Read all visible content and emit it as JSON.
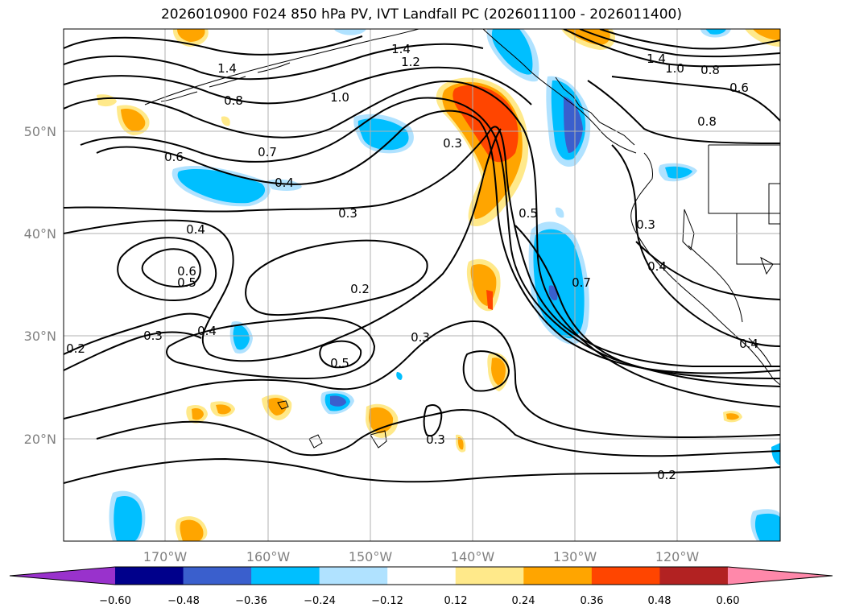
{
  "title": "2026010900 F024 850 hPa PV, IVT Landfall PC (2026011100 - 2026011400)",
  "lat_labels": [
    "50°N",
    "40°N",
    "30°N",
    "20°N"
  ],
  "lon_labels": [
    "170°W",
    "160°W",
    "150°W",
    "140°W",
    "130°W",
    "120°W"
  ],
  "contour_labels": [
    "1.4",
    "1.4",
    "1.2",
    "1.0",
    "0.8",
    "1.4",
    "1.0",
    "0.8",
    "0.6",
    "0.8",
    "0.7",
    "0.6",
    "0.3",
    "0.4",
    "0.4",
    "0.3",
    "0.5",
    "0.3",
    "0.4",
    "0.6",
    "0.5",
    "0.2",
    "0.4",
    "0.7",
    "0.3",
    "0.2",
    "0.4",
    "0.3",
    "0.5",
    "0.3",
    "0.2"
  ],
  "colorbar": {
    "ticks": [
      "−0.60",
      "−0.48",
      "−0.36",
      "−0.24",
      "−0.12",
      "0.12",
      "0.24",
      "0.36",
      "0.48",
      "0.60"
    ],
    "colors": [
      "#9932cc",
      "#00008b",
      "#3a5fcd",
      "#00bfff",
      "#b0e2ff",
      "#ffffff",
      "#ffe98a",
      "#ffa500",
      "#ff4500",
      "#b22222",
      "#ff88aa"
    ]
  }
}
